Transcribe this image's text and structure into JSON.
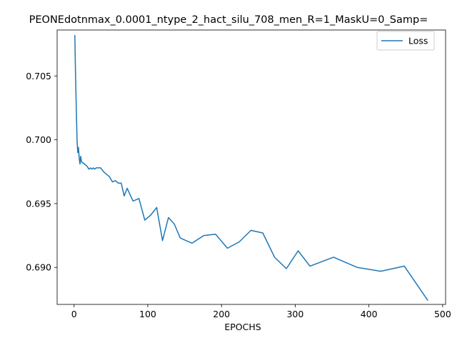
{
  "chart_data": {
    "type": "line",
    "title": "PEONEdotnmax_0.0001_ntype_2_hact_silu_708_men_R=1_MaskU=0_Samp=",
    "xlabel": "EPOCHS",
    "ylabel": "",
    "xlim": [
      -23,
      504
    ],
    "ylim": [
      0.6871,
      0.7086
    ],
    "xticks": [
      0,
      100,
      200,
      300,
      400,
      500
    ],
    "yticks": [
      0.69,
      0.695,
      0.7,
      0.705
    ],
    "ytick_labels": [
      "0.690",
      "0.695",
      "0.700",
      "0.705"
    ],
    "grid": false,
    "legend_position": "top-right",
    "series": [
      {
        "name": "Loss",
        "color": "#1f77b4",
        "x": [
          1,
          2,
          3,
          4,
          5,
          6,
          7,
          8,
          9,
          10,
          11,
          12,
          14,
          16,
          18,
          20,
          22,
          24,
          26,
          28,
          30,
          32,
          36,
          40,
          44,
          48,
          52,
          56,
          60,
          64,
          68,
          72,
          76,
          80,
          88,
          96,
          104,
          112,
          120,
          128,
          136,
          144,
          160,
          176,
          192,
          208,
          224,
          240,
          256,
          272,
          288,
          304,
          320,
          352,
          384,
          416,
          448,
          480
        ],
        "y": [
          0.7082,
          0.705,
          0.7025,
          0.7,
          0.699,
          0.6994,
          0.6985,
          0.6981,
          0.6987,
          0.6983,
          0.6982,
          0.6982,
          0.6981,
          0.698,
          0.6979,
          0.6977,
          0.6978,
          0.6977,
          0.6978,
          0.6977,
          0.6978,
          0.6978,
          0.6978,
          0.6975,
          0.6973,
          0.6971,
          0.6967,
          0.6968,
          0.6966,
          0.6966,
          0.6956,
          0.6962,
          0.6957,
          0.6952,
          0.6954,
          0.6937,
          0.6941,
          0.6947,
          0.6921,
          0.6939,
          0.6934,
          0.6923,
          0.6919,
          0.6925,
          0.6926,
          0.6915,
          0.692,
          0.6929,
          0.6927,
          0.6908,
          0.6899,
          0.6913,
          0.6901,
          0.6908,
          0.69,
          0.6897,
          0.6901,
          0.6874
        ]
      }
    ]
  }
}
